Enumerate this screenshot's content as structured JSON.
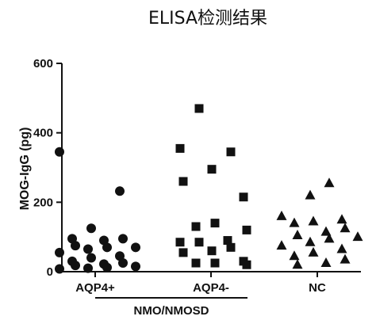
{
  "chart_data": {
    "type": "scatter",
    "title": "ELISA检测结果",
    "xlabel": "",
    "ylabel": "MOG-IgG (pg)",
    "ylim": [
      0,
      600
    ],
    "yticks": [
      "0",
      "200",
      "400",
      "600"
    ],
    "categories": [
      "AQP4+",
      "AQP4-",
      "NC"
    ],
    "group_label": "NMO/NMOSD",
    "grid": false,
    "series": [
      {
        "category": "AQP4+",
        "marker": "circle",
        "values": [
          345,
          232,
          125,
          95,
          95,
          90,
          75,
          70,
          70,
          65,
          55,
          45,
          40,
          30,
          25,
          22,
          18,
          15,
          12,
          10,
          8
        ]
      },
      {
        "category": "AQP4-",
        "marker": "square",
        "values": [
          470,
          355,
          345,
          295,
          260,
          215,
          140,
          130,
          120,
          90,
          85,
          85,
          70,
          60,
          55,
          30,
          25,
          25,
          20
        ]
      },
      {
        "category": "NC",
        "marker": "triangle",
        "values": [
          255,
          220,
          160,
          150,
          145,
          140,
          125,
          115,
          105,
          100,
          95,
          85,
          75,
          65,
          55,
          45,
          35,
          25,
          20
        ]
      }
    ]
  }
}
